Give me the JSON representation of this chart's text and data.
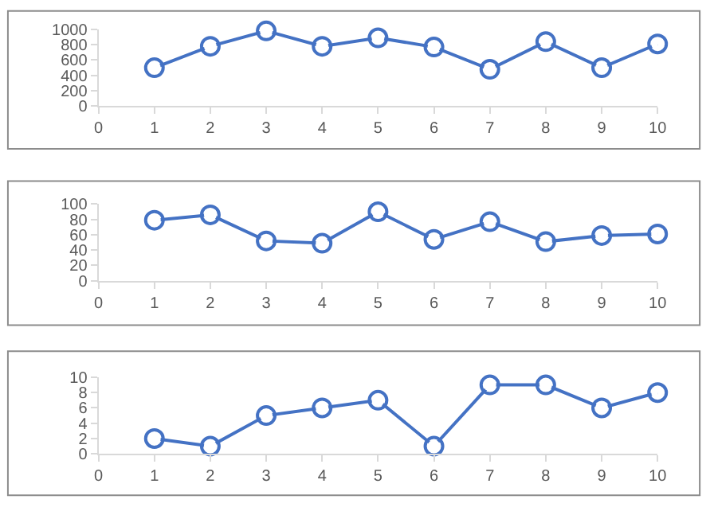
{
  "chart_data": [
    {
      "type": "line",
      "x": [
        1,
        2,
        3,
        4,
        5,
        6,
        7,
        8,
        9,
        10
      ],
      "series": [
        {
          "color": "#4472c4",
          "values": [
            500,
            780,
            980,
            780,
            890,
            770,
            480,
            840,
            500,
            810
          ]
        }
      ],
      "xlim": [
        0,
        10
      ],
      "xticks": [
        0,
        1,
        2,
        3,
        4,
        5,
        6,
        7,
        8,
        9,
        10
      ],
      "ylim": [
        0,
        1000
      ],
      "yticks": [
        0,
        200,
        400,
        600,
        800,
        1000
      ],
      "grid": false,
      "marker": "circle",
      "line_style": "solid"
    },
    {
      "type": "line",
      "x": [
        1,
        2,
        3,
        4,
        5,
        6,
        7,
        8,
        9,
        10
      ],
      "series": [
        {
          "color": "#4472c4",
          "values": [
            79,
            86,
            52,
            49,
            90,
            54,
            77,
            51,
            59,
            61
          ]
        }
      ],
      "xlim": [
        0,
        10
      ],
      "xticks": [
        0,
        1,
        2,
        3,
        4,
        5,
        6,
        7,
        8,
        9,
        10
      ],
      "ylim": [
        0,
        100
      ],
      "yticks": [
        0,
        20,
        40,
        60,
        80,
        100
      ],
      "grid": false,
      "marker": "circle",
      "line_style": "solid"
    },
    {
      "type": "line",
      "x": [
        1,
        2,
        3,
        4,
        5,
        6,
        7,
        8,
        9,
        10
      ],
      "series": [
        {
          "color": "#4472c4",
          "values": [
            2,
            1,
            5,
            6,
            7,
            1,
            9,
            9,
            6,
            8
          ]
        }
      ],
      "xlim": [
        0,
        10
      ],
      "xticks": [
        0,
        1,
        2,
        3,
        4,
        5,
        6,
        7,
        8,
        9,
        10
      ],
      "ylim": [
        0,
        10
      ],
      "yticks": [
        0,
        2,
        4,
        6,
        8,
        10
      ],
      "grid": false,
      "marker": "circle",
      "line_style": "solid"
    }
  ]
}
